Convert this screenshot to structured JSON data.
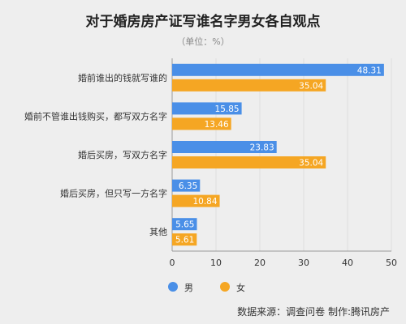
{
  "title": "对于婚房房产证写谁名字男女各自观点",
  "subtitle": "（单位：%）",
  "source": "数据来源：调查问卷  制作:腾讯房产",
  "colors": {
    "male": "#4a8fe7",
    "female": "#f5a623",
    "grid": "#dddddd",
    "axis": "#999999"
  },
  "chart_data": {
    "type": "bar",
    "orientation": "horizontal",
    "categories": [
      "婚前谁出的钱就写谁的",
      "婚前不管谁出钱购买，都写双方名字",
      "婚后买房，写双方名字",
      "婚后买房，但只写一方名字",
      "其他"
    ],
    "series": [
      {
        "name": "男",
        "values": [
          48.31,
          15.85,
          23.83,
          6.35,
          5.65
        ]
      },
      {
        "name": "女",
        "values": [
          35.04,
          13.46,
          35.04,
          10.84,
          5.61
        ]
      }
    ],
    "xlim": [
      0,
      50
    ],
    "xticks": [
      0,
      10,
      20,
      30,
      40,
      50
    ],
    "grid": true,
    "legend": "bottom-left"
  }
}
